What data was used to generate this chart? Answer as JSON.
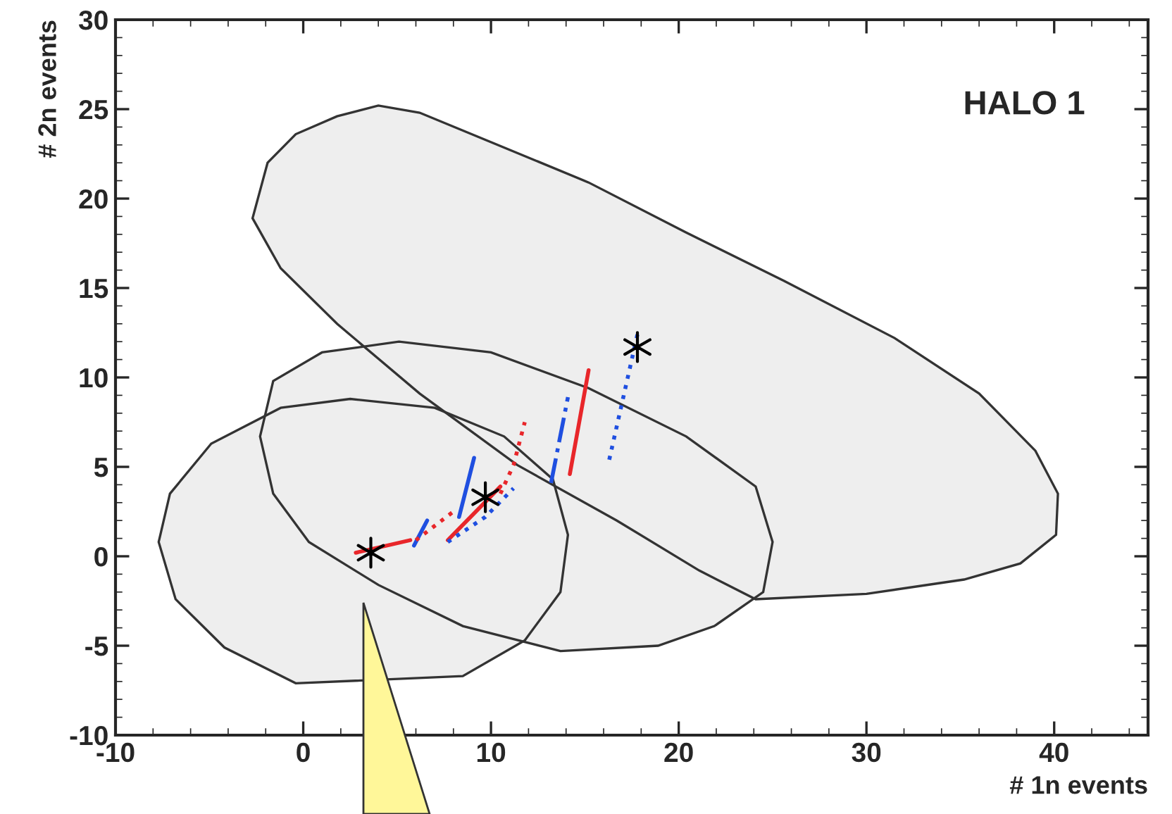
{
  "chart_data": {
    "type": "line",
    "xlabel": "# 1n events",
    "ylabel": "# 2n events",
    "xlim": [
      -10,
      45
    ],
    "ylim": [
      -10,
      30
    ],
    "xticks": [
      -10,
      0,
      10,
      20,
      30,
      40
    ],
    "yticks": [
      -10,
      -5,
      0,
      5,
      10,
      15,
      20,
      25,
      30
    ],
    "grid": false,
    "legend": false,
    "annotations": [
      "HALO 1"
    ],
    "series": [
      {
        "type": "area",
        "color": "#eeeeee",
        "x": [
          -2.7,
          -1.9,
          -0.4,
          1.8,
          4.0,
          6.2,
          9.9,
          15.2,
          20.4,
          25.6,
          31.5,
          36.0,
          39.0,
          40.2,
          40.1,
          38.2,
          35.2,
          30.0,
          24.1,
          21.1,
          16.7,
          11.4,
          6.2,
          1.8,
          -1.2,
          -2.7
        ],
        "values": [
          18.9,
          22.0,
          23.6,
          24.6,
          25.2,
          24.8,
          23.2,
          20.9,
          18.1,
          15.4,
          12.2,
          9.1,
          5.9,
          3.5,
          1.2,
          -0.4,
          -1.3,
          -2.1,
          -2.4,
          -0.8,
          2.0,
          5.1,
          9.1,
          13.0,
          16.1,
          18.9
        ]
      },
      {
        "type": "area",
        "color": "#eeeeee",
        "x": [
          -2.3,
          -1.6,
          1.0,
          5.1,
          10.0,
          15.2,
          20.4,
          24.1,
          25.0,
          24.5,
          21.9,
          18.9,
          13.7,
          8.5,
          4.0,
          0.3,
          -1.6,
          -2.3
        ],
        "values": [
          6.7,
          9.8,
          11.4,
          12.0,
          11.4,
          9.4,
          6.7,
          3.9,
          0.8,
          -2.0,
          -3.9,
          -5.0,
          -5.3,
          -3.9,
          -1.6,
          0.8,
          3.5,
          6.7
        ]
      },
      {
        "type": "area",
        "color": "#eeeeee",
        "x": [
          -7.7,
          -7.1,
          -4.9,
          -1.2,
          2.5,
          7.0,
          10.7,
          13.3,
          14.1,
          13.7,
          11.8,
          8.5,
          4.0,
          -0.4,
          -4.2,
          -6.8,
          -7.7
        ],
        "values": [
          0.8,
          3.5,
          6.3,
          8.3,
          8.8,
          8.3,
          6.7,
          4.3,
          1.2,
          -2.0,
          -4.7,
          -6.7,
          null,
          -7.1,
          -5.1,
          -2.4,
          0.8
        ]
      },
      {
        "color": "#e8262a",
        "line_style": "solid",
        "x": [
          2.8,
          5.7
        ],
        "values": [
          0.2,
          0.9
        ]
      },
      {
        "color": "#1f4fe0",
        "line_style": "solid",
        "x": [
          5.9,
          6.6
        ],
        "values": [
          0.6,
          2.0
        ]
      },
      {
        "color": "#e8262a",
        "line_style": "dotted",
        "x": [
          6.0,
          8.0
        ],
        "values": [
          0.9,
          2.5
        ]
      },
      {
        "color": "#1f4fe0",
        "line_style": "solid",
        "x": [
          8.3,
          9.1
        ],
        "values": [
          2.2,
          5.5
        ]
      },
      {
        "color": "#e8262a",
        "line_style": "solid",
        "x": [
          7.7,
          10.5
        ],
        "values": [
          0.9,
          3.9
        ]
      },
      {
        "color": "#1f4fe0",
        "line_style": "dotted",
        "x": [
          7.7,
          9.7,
          11.2
        ],
        "values": [
          0.8,
          2.2,
          3.8
        ]
      },
      {
        "color": "#e8262a",
        "line_style": "dotted",
        "x": [
          10.5,
          11.2,
          11.8
        ],
        "values": [
          3.5,
          5.1,
          7.5
        ]
      },
      {
        "color": "#1f4fe0",
        "line_style": "dashed",
        "x": [
          13.2,
          14.1
        ],
        "values": [
          4.1,
          8.9
        ]
      },
      {
        "color": "#e8262a",
        "line_style": "solid",
        "x": [
          14.2,
          15.2
        ],
        "values": [
          4.6,
          10.4
        ]
      },
      {
        "color": "#1f4fe0",
        "line_style": "dotted",
        "x": [
          16.3,
          17.8
        ],
        "values": [
          5.4,
          12.4
        ]
      },
      {
        "type": "scatter",
        "color": "#000000",
        "marker": "cross",
        "x": [
          3.6,
          9.7,
          17.8
        ],
        "values": [
          0.2,
          3.3,
          11.7
        ]
      }
    ]
  }
}
